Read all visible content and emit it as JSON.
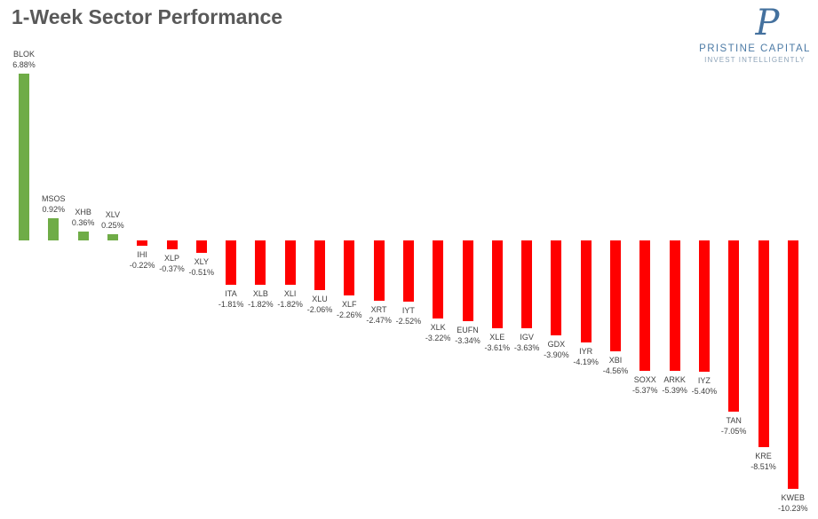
{
  "title": "1-Week Sector Performance",
  "logo": {
    "monogram": "P",
    "name": "PRISTINE CAPITAL",
    "tagline": "INVEST INTELLIGENTLY"
  },
  "colors": {
    "positive_bar": "#6fac47",
    "negative_bar": "#ff0000",
    "title_text": "#595959",
    "label_text": "#404040",
    "logo_blue": "#4d7ba6",
    "logo_tagline_blue": "#8da3b8"
  },
  "chart_data": {
    "type": "bar",
    "title": "1-Week Sector Performance",
    "xlabel": "",
    "ylabel": "",
    "legend": "none",
    "grid": false,
    "axis_lines_visible": false,
    "ylim": [
      -10.23,
      6.88
    ],
    "sorted": "descending",
    "label_format": "ticker above value, positive labels above bars, negative labels below bars",
    "categories": [
      "BLOK",
      "MSOS",
      "XHB",
      "XLV",
      "IHI",
      "XLP",
      "XLY",
      "ITA",
      "XLB",
      "XLI",
      "XLU",
      "XLF",
      "XRT",
      "IYT",
      "XLK",
      "EUFN",
      "XLE",
      "IGV",
      "GDX",
      "IYR",
      "XBI",
      "SOXX",
      "ARKK",
      "IYZ",
      "TAN",
      "KRE",
      "KWEB"
    ],
    "values": [
      6.88,
      0.92,
      0.36,
      0.25,
      -0.22,
      -0.37,
      -0.51,
      -1.81,
      -1.82,
      -1.82,
      -2.06,
      -2.26,
      -2.47,
      -2.52,
      -3.22,
      -3.34,
      -3.61,
      -3.63,
      -3.9,
      -4.19,
      -4.56,
      -5.37,
      -5.39,
      -5.4,
      -7.05,
      -8.51,
      -10.23
    ],
    "value_labels": [
      "6.88%",
      "0.92%",
      "0.36%",
      "0.25%",
      "-0.22%",
      "-0.37%",
      "-0.51%",
      "-1.81%",
      "-1.82%",
      "-1.82%",
      "-2.06%",
      "-2.26%",
      "-2.47%",
      "-2.52%",
      "-3.22%",
      "-3.34%",
      "-3.61%",
      "-3.63%",
      "-3.90%",
      "-4.19%",
      "-4.56%",
      "-5.37%",
      "-5.39%",
      "-5.40%",
      "-7.05%",
      "-8.51%",
      "-10.23%"
    ]
  }
}
